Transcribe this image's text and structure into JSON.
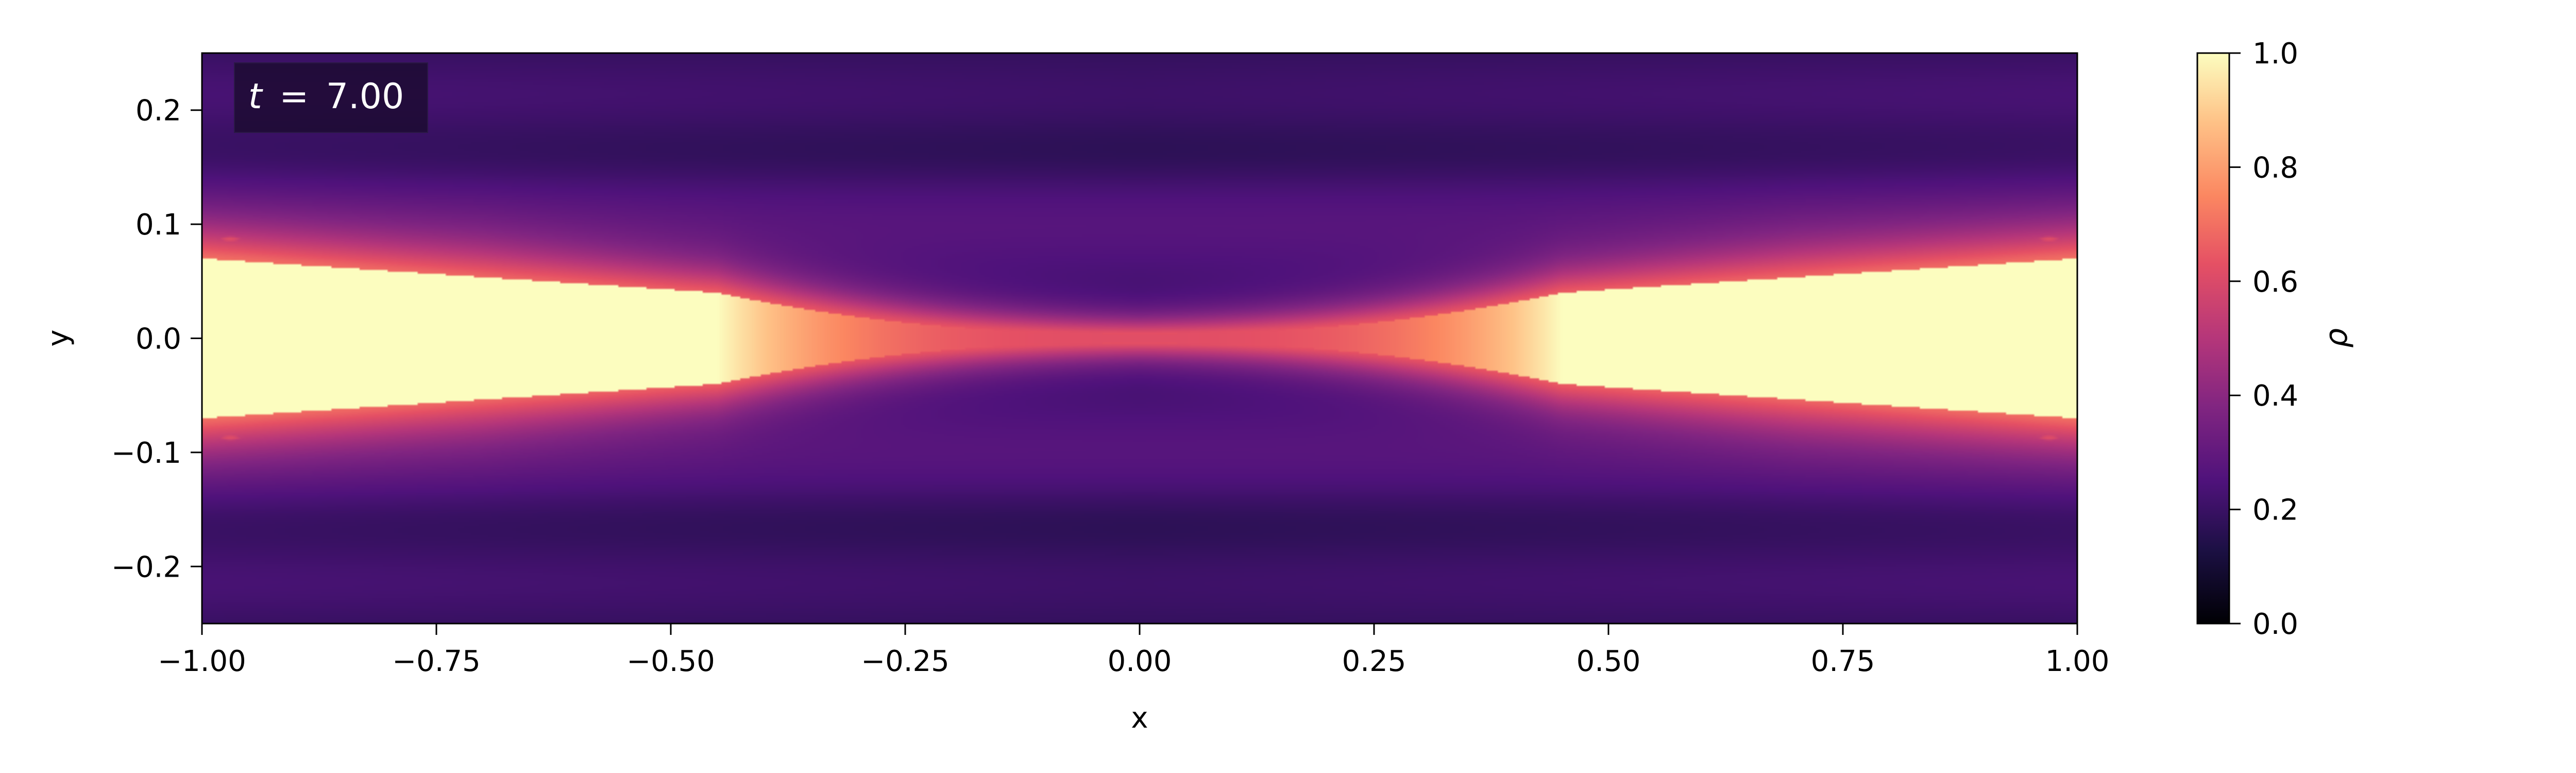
{
  "chart_data": {
    "type": "heatmap",
    "title": "",
    "annotation": {
      "prefix": "t",
      "equals": "=",
      "value": "7.00"
    },
    "xlabel": "x",
    "ylabel": "y",
    "xlim": [
      -1.0,
      1.0
    ],
    "ylim": [
      -0.25,
      0.25
    ],
    "xticks": [
      -1.0,
      -0.75,
      -0.5,
      -0.25,
      0.0,
      0.25,
      0.5,
      0.75,
      1.0
    ],
    "xtick_labels": [
      "−1.00",
      "−0.75",
      "−0.50",
      "−0.25",
      "0.00",
      "0.25",
      "0.50",
      "0.75",
      "1.00"
    ],
    "yticks": [
      -0.2,
      -0.1,
      0.0,
      0.1,
      0.2
    ],
    "ytick_labels": [
      "−0.2",
      "−0.1",
      "0.0",
      "0.1",
      "0.2"
    ],
    "colormap": "magma",
    "colorbar": {
      "label": "ρ",
      "range": [
        0.0,
        1.0
      ],
      "ticks": [
        0.0,
        0.2,
        0.4,
        0.6,
        0.8,
        1.0
      ],
      "tick_labels": [
        "0.0",
        "0.2",
        "0.4",
        "0.6",
        "0.8",
        "1.0"
      ]
    },
    "field_description": "density rho(x,y): dense core (rho≈1) near |x|>0.45 at y≈0 tapering to a thin sheet at x≈0; background rho≈0.15–0.35",
    "dense_core": {
      "rho": 1.0,
      "x_extent": [
        0.45,
        1.0
      ],
      "half_width_at_edge": 0.07
    },
    "background_rho": [
      0.12,
      0.35
    ],
    "grid": false
  }
}
